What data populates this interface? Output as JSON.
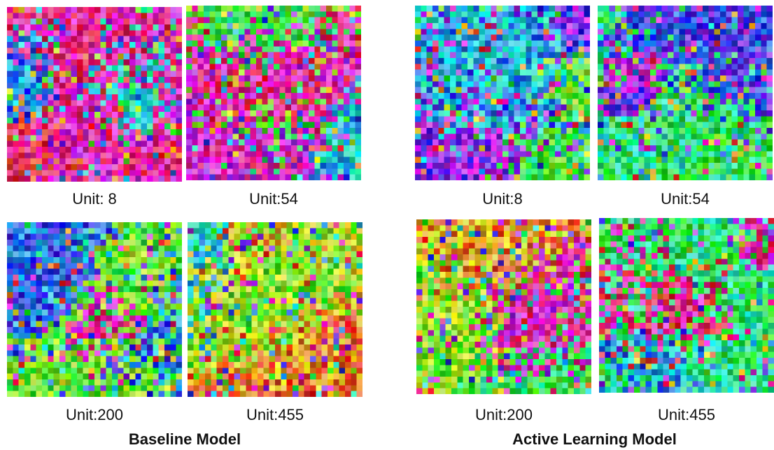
{
  "panels": [
    {
      "title": "Baseline Model",
      "units": [
        {
          "label": "Unit: 8",
          "seed": 11,
          "hues": [
            330,
            190,
            0
          ]
        },
        {
          "label": "Unit:54",
          "seed": 23,
          "hues": [
            120,
            320,
            200
          ]
        },
        {
          "label": "Unit:200",
          "seed": 37,
          "hues": [
            110,
            230,
            300
          ]
        },
        {
          "label": "Unit:455",
          "seed": 41,
          "hues": [
            90,
            30,
            180
          ]
        }
      ]
    },
    {
      "title": "Active Learning Model",
      "units": [
        {
          "label": "Unit:8",
          "seed": 53,
          "hues": [
            270,
            120,
            200
          ]
        },
        {
          "label": "Unit:54",
          "seed": 67,
          "hues": [
            150,
            250,
            300
          ]
        },
        {
          "label": "Unit:200",
          "seed": 79,
          "hues": [
            320,
            110,
            30
          ]
        },
        {
          "label": "Unit:455",
          "seed": 83,
          "hues": [
            330,
            140,
            200
          ]
        }
      ]
    }
  ]
}
